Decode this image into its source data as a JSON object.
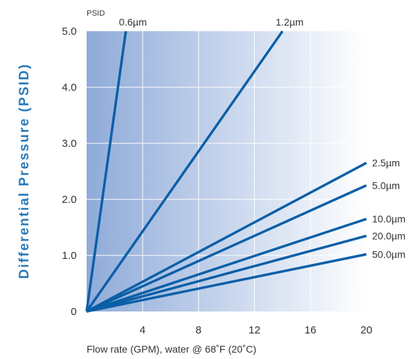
{
  "colors": {
    "background_left": "#8fabd9",
    "background_right": "#ffffff",
    "series": "#0b5fa8",
    "ylabel": "#2a7ab8",
    "grid": "#ffffff"
  },
  "chart_data": {
    "type": "line",
    "title": "",
    "ylabel": "Differential Pressure (PSID)",
    "yunit": "PSID",
    "xlabel": "Flow rate (GPM), water @ 68˚F (20˚C)",
    "xlim": [
      0,
      20
    ],
    "ylim": [
      0,
      5
    ],
    "xticks": [
      "4",
      "8",
      "12",
      "16",
      "20"
    ],
    "yticks": [
      "0",
      "1.0",
      "2.0",
      "3.0",
      "4.0",
      "5.0"
    ],
    "grid": true,
    "series": [
      {
        "name": "0.6µm",
        "x": [
          0,
          2.8
        ],
        "y": [
          0,
          5.0
        ]
      },
      {
        "name": "1.2µm",
        "x": [
          0,
          14.0
        ],
        "y": [
          0,
          5.0
        ]
      },
      {
        "name": "2.5µm",
        "x": [
          0,
          20
        ],
        "y": [
          0,
          2.65
        ]
      },
      {
        "name": "5.0µm",
        "x": [
          0,
          20
        ],
        "y": [
          0,
          2.25
        ]
      },
      {
        "name": "10.0µm",
        "x": [
          0,
          20
        ],
        "y": [
          0,
          1.65
        ]
      },
      {
        "name": "20.0µm",
        "x": [
          0,
          20
        ],
        "y": [
          0,
          1.35
        ]
      },
      {
        "name": "50.0µm",
        "x": [
          0,
          20
        ],
        "y": [
          0,
          1.02
        ]
      }
    ]
  }
}
